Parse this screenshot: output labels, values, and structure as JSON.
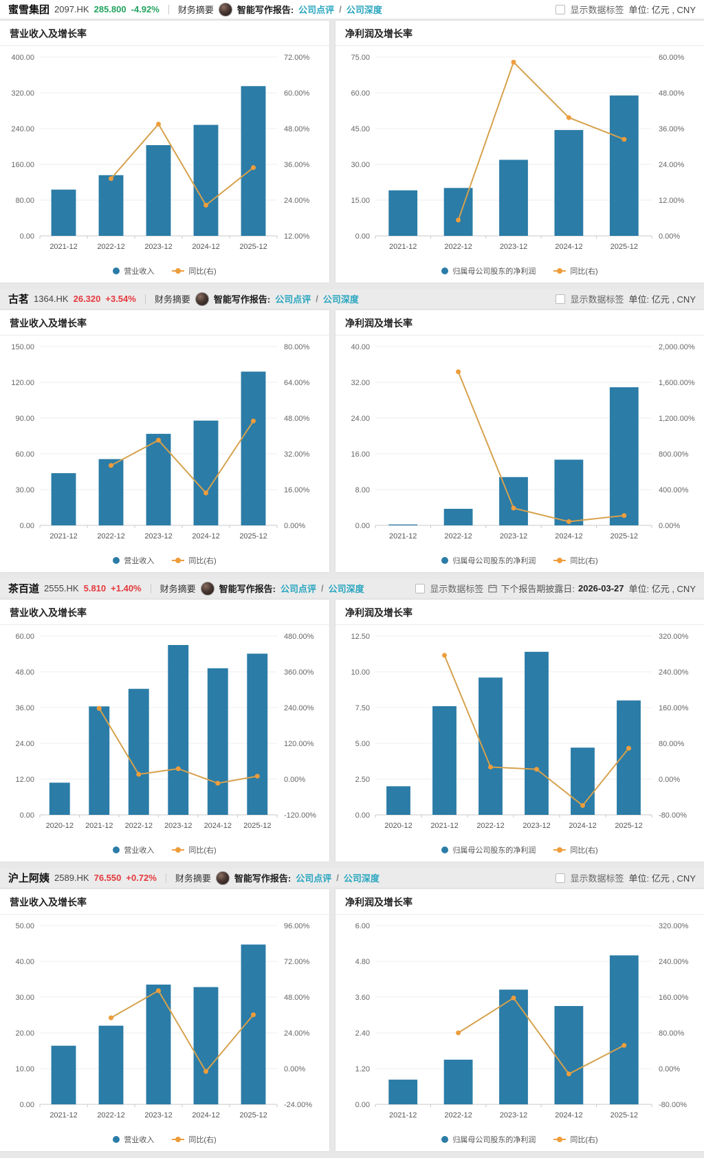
{
  "colors": {
    "bar": "#2b7ca7",
    "line": "#d6a14c",
    "marker": "#ee9d3c",
    "down_green": "#21a35e",
    "up_red": "#e5393d",
    "link_teal": "#2aa6bf"
  },
  "common": {
    "show_labels": "显示数据标签",
    "unit": "单位: 亿元 , CNY",
    "summary_label": "财务摘要",
    "report_label": "智能写作报告:",
    "link_review": "公司点评",
    "link_depth": "公司深度",
    "slash": "/",
    "legend_line": "同比(右)"
  },
  "rows": [
    {
      "company": "蜜雪集团",
      "ticker": "2097.HK",
      "price": "285.800",
      "change": "-4.92%",
      "trend": "down",
      "summary_label": "财务摘要",
      "report_label": "智能写作报告:",
      "link_review": "公司点评",
      "link_depth": "公司深度",
      "show_labels": "显示数据标签",
      "unit": "单位: 亿元 , CNY",
      "next_report_label": null,
      "next_report_date": null,
      "charts": [
        {
          "title": "营业收入及增长率",
          "type": "bar+line",
          "categories": [
            "2021-12",
            "2022-12",
            "2023-12",
            "2024-12",
            "2025-12"
          ],
          "bar_series": {
            "name": "营业收入",
            "values": [
              103.5,
              135.8,
              203.0,
              248.3,
              335.0
            ]
          },
          "line_series": {
            "name": "同比(右)",
            "values": [
              null,
              31.2,
              49.5,
              22.3,
              34.9
            ]
          },
          "left_axis": {
            "min": 0,
            "max": 400
          },
          "right_axis": {
            "min": 12,
            "max": 72
          }
        },
        {
          "title": "净利润及增长率",
          "type": "bar+line",
          "categories": [
            "2021-12",
            "2022-12",
            "2023-12",
            "2024-12",
            "2025-12"
          ],
          "bar_series": {
            "name": "归属母公司股东的净利润",
            "values": [
              19.1,
              20.1,
              31.9,
              44.4,
              58.9
            ]
          },
          "line_series": {
            "name": "同比(右)",
            "values": [
              null,
              5.3,
              58.3,
              39.7,
              32.4
            ]
          },
          "left_axis": {
            "min": 0,
            "max": 75
          },
          "right_axis": {
            "min": 0,
            "max": 60
          }
        }
      ]
    },
    {
      "company": "古茗",
      "ticker": "1364.HK",
      "price": "26.320",
      "change": "+3.54%",
      "trend": "up",
      "summary_label": "财务摘要",
      "report_label": "智能写作报告:",
      "link_review": "公司点评",
      "link_depth": "公司深度",
      "show_labels": "显示数据标签",
      "unit": "单位: 亿元 , CNY",
      "next_report_label": null,
      "next_report_date": null,
      "charts": [
        {
          "title": "营业收入及增长率",
          "type": "bar+line",
          "categories": [
            "2021-12",
            "2022-12",
            "2023-12",
            "2024-12",
            "2025-12"
          ],
          "bar_series": {
            "name": "营业收入",
            "values": [
              43.8,
              55.6,
              76.8,
              87.9,
              129.0
            ]
          },
          "line_series": {
            "name": "同比(右)",
            "values": [
              null,
              26.8,
              38.1,
              14.5,
              46.7
            ]
          },
          "left_axis": {
            "min": 0,
            "max": 150
          },
          "right_axis": {
            "min": 0,
            "max": 80
          }
        },
        {
          "title": "净利润及增长率",
          "type": "bar+line",
          "categories": [
            "2021-12",
            "2022-12",
            "2023-12",
            "2024-12",
            "2025-12"
          ],
          "bar_series": {
            "name": "归属母公司股东的净利润",
            "values": [
              0.2,
              3.7,
              10.8,
              14.7,
              30.9
            ]
          },
          "line_series": {
            "name": "同比(右)",
            "values": [
              null,
              1718.0,
              193.0,
              42.0,
              110.0
            ]
          },
          "left_axis": {
            "min": 0,
            "max": 40
          },
          "right_axis": {
            "min": 0,
            "max": 2000
          }
        }
      ]
    },
    {
      "company": "茶百道",
      "ticker": "2555.HK",
      "price": "5.810",
      "change": "+1.40%",
      "trend": "up",
      "summary_label": "财务摘要",
      "report_label": "智能写作报告:",
      "link_review": "公司点评",
      "link_depth": "公司深度",
      "show_labels": "显示数据标签",
      "unit": "单位: 亿元 , CNY",
      "next_report_label": "下个报告期披露日:",
      "next_report_date": "2026-03-27",
      "charts": [
        {
          "title": "营业收入及增长率",
          "type": "bar+line",
          "categories": [
            "2020-12",
            "2021-12",
            "2022-12",
            "2023-12",
            "2024-12",
            "2025-12"
          ],
          "bar_series": {
            "name": "营业收入",
            "values": [
              10.8,
              36.4,
              42.3,
              57.0,
              49.2,
              54.1
            ]
          },
          "line_series": {
            "name": "同比(右)",
            "values": [
              null,
              237.4,
              16.1,
              34.8,
              -13.8,
              9.9
            ]
          },
          "left_axis": {
            "min": 0,
            "max": 60
          },
          "right_axis": {
            "min": -120,
            "max": 480
          }
        },
        {
          "title": "净利润及增长率",
          "type": "bar+line",
          "categories": [
            "2020-12",
            "2021-12",
            "2022-12",
            "2023-12",
            "2024-12",
            "2025-12"
          ],
          "bar_series": {
            "name": "归属母公司股东的净利润",
            "values": [
              2.0,
              7.6,
              9.6,
              11.4,
              4.7,
              8.0
            ]
          },
          "line_series": {
            "name": "同比(右)",
            "values": [
              null,
              277.0,
              27.0,
              22.0,
              -59.0,
              69.0
            ]
          },
          "left_axis": {
            "min": 0,
            "max": 12.5
          },
          "right_axis": {
            "min": -80,
            "max": 320
          }
        }
      ]
    },
    {
      "company": "沪上阿姨",
      "ticker": "2589.HK",
      "price": "76.550",
      "change": "+0.72%",
      "trend": "up",
      "summary_label": "财务摘要",
      "report_label": "智能写作报告:",
      "link_review": "公司点评",
      "link_depth": "公司深度",
      "show_labels": "显示数据标签",
      "unit": "单位: 亿元 , CNY",
      "next_report_label": null,
      "next_report_date": null,
      "charts": [
        {
          "title": "营业收入及增长率",
          "type": "bar+line",
          "categories": [
            "2021-12",
            "2022-12",
            "2023-12",
            "2024-12",
            "2025-12"
          ],
          "bar_series": {
            "name": "营业收入",
            "values": [
              16.4,
              22.0,
              33.5,
              32.8,
              44.7
            ]
          },
          "line_series": {
            "name": "同比(右)",
            "values": [
              null,
              34.1,
              52.3,
              -1.9,
              36.1
            ]
          },
          "left_axis": {
            "min": 0,
            "max": 50
          },
          "right_axis": {
            "min": -24,
            "max": 96
          }
        },
        {
          "title": "净利润及增长率",
          "type": "bar+line",
          "categories": [
            "2021-12",
            "2022-12",
            "2023-12",
            "2024-12",
            "2025-12"
          ],
          "bar_series": {
            "name": "归属母公司股东的净利润",
            "values": [
              0.83,
              1.5,
              3.85,
              3.3,
              5.0
            ]
          },
          "line_series": {
            "name": "同比(右)",
            "values": [
              null,
              80.0,
              158.0,
              -12.0,
              52.0
            ]
          },
          "left_axis": {
            "min": 0,
            "max": 6
          },
          "right_axis": {
            "min": -80,
            "max": 320
          }
        }
      ]
    }
  ]
}
